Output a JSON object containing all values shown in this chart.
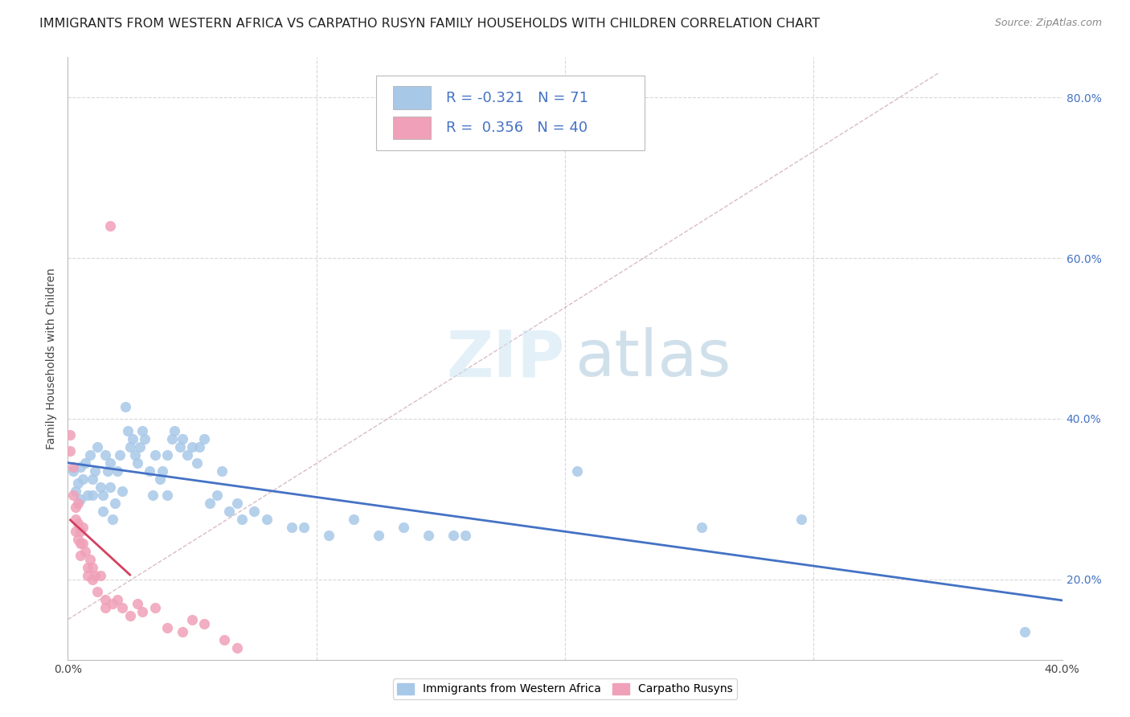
{
  "title": "IMMIGRANTS FROM WESTERN AFRICA VS CARPATHO RUSYN FAMILY HOUSEHOLDS WITH CHILDREN CORRELATION CHART",
  "source": "Source: ZipAtlas.com",
  "ylabel": "Family Households with Children",
  "xlim": [
    0.0,
    0.4
  ],
  "ylim": [
    0.1,
    0.85
  ],
  "blue_R": "-0.321",
  "blue_N": "71",
  "pink_R": "0.356",
  "pink_N": "40",
  "blue_color": "#a8c8e8",
  "pink_color": "#f0a0b8",
  "blue_line_color": "#4472c4",
  "pink_line_color": "#d44060",
  "blue_scatter": [
    [
      0.002,
      0.335
    ],
    [
      0.003,
      0.31
    ],
    [
      0.004,
      0.32
    ],
    [
      0.005,
      0.34
    ],
    [
      0.005,
      0.3
    ],
    [
      0.006,
      0.325
    ],
    [
      0.007,
      0.345
    ],
    [
      0.008,
      0.305
    ],
    [
      0.009,
      0.355
    ],
    [
      0.01,
      0.325
    ],
    [
      0.01,
      0.305
    ],
    [
      0.011,
      0.335
    ],
    [
      0.012,
      0.365
    ],
    [
      0.013,
      0.315
    ],
    [
      0.014,
      0.305
    ],
    [
      0.014,
      0.285
    ],
    [
      0.015,
      0.355
    ],
    [
      0.016,
      0.335
    ],
    [
      0.017,
      0.345
    ],
    [
      0.017,
      0.315
    ],
    [
      0.018,
      0.275
    ],
    [
      0.019,
      0.295
    ],
    [
      0.02,
      0.335
    ],
    [
      0.021,
      0.355
    ],
    [
      0.022,
      0.31
    ],
    [
      0.023,
      0.415
    ],
    [
      0.024,
      0.385
    ],
    [
      0.025,
      0.365
    ],
    [
      0.026,
      0.375
    ],
    [
      0.027,
      0.355
    ],
    [
      0.028,
      0.345
    ],
    [
      0.029,
      0.365
    ],
    [
      0.03,
      0.385
    ],
    [
      0.031,
      0.375
    ],
    [
      0.033,
      0.335
    ],
    [
      0.034,
      0.305
    ],
    [
      0.035,
      0.355
    ],
    [
      0.037,
      0.325
    ],
    [
      0.038,
      0.335
    ],
    [
      0.04,
      0.355
    ],
    [
      0.04,
      0.305
    ],
    [
      0.042,
      0.375
    ],
    [
      0.043,
      0.385
    ],
    [
      0.045,
      0.365
    ],
    [
      0.046,
      0.375
    ],
    [
      0.048,
      0.355
    ],
    [
      0.05,
      0.365
    ],
    [
      0.052,
      0.345
    ],
    [
      0.053,
      0.365
    ],
    [
      0.055,
      0.375
    ],
    [
      0.057,
      0.295
    ],
    [
      0.06,
      0.305
    ],
    [
      0.062,
      0.335
    ],
    [
      0.065,
      0.285
    ],
    [
      0.068,
      0.295
    ],
    [
      0.07,
      0.275
    ],
    [
      0.075,
      0.285
    ],
    [
      0.08,
      0.275
    ],
    [
      0.09,
      0.265
    ],
    [
      0.095,
      0.265
    ],
    [
      0.105,
      0.255
    ],
    [
      0.115,
      0.275
    ],
    [
      0.125,
      0.255
    ],
    [
      0.135,
      0.265
    ],
    [
      0.145,
      0.255
    ],
    [
      0.155,
      0.255
    ],
    [
      0.16,
      0.255
    ],
    [
      0.205,
      0.335
    ],
    [
      0.255,
      0.265
    ],
    [
      0.295,
      0.275
    ],
    [
      0.385,
      0.135
    ]
  ],
  "pink_scatter": [
    [
      0.001,
      0.38
    ],
    [
      0.001,
      0.36
    ],
    [
      0.002,
      0.34
    ],
    [
      0.002,
      0.305
    ],
    [
      0.003,
      0.29
    ],
    [
      0.003,
      0.26
    ],
    [
      0.003,
      0.275
    ],
    [
      0.004,
      0.295
    ],
    [
      0.004,
      0.27
    ],
    [
      0.004,
      0.25
    ],
    [
      0.005,
      0.26
    ],
    [
      0.005,
      0.245
    ],
    [
      0.005,
      0.23
    ],
    [
      0.006,
      0.265
    ],
    [
      0.006,
      0.245
    ],
    [
      0.007,
      0.235
    ],
    [
      0.008,
      0.215
    ],
    [
      0.008,
      0.205
    ],
    [
      0.009,
      0.225
    ],
    [
      0.01,
      0.215
    ],
    [
      0.01,
      0.2
    ],
    [
      0.011,
      0.205
    ],
    [
      0.012,
      0.185
    ],
    [
      0.013,
      0.205
    ],
    [
      0.015,
      0.175
    ],
    [
      0.015,
      0.165
    ],
    [
      0.017,
      0.64
    ],
    [
      0.02,
      0.175
    ],
    [
      0.022,
      0.165
    ],
    [
      0.025,
      0.155
    ],
    [
      0.028,
      0.17
    ],
    [
      0.03,
      0.16
    ],
    [
      0.035,
      0.165
    ],
    [
      0.04,
      0.14
    ],
    [
      0.046,
      0.135
    ],
    [
      0.05,
      0.15
    ],
    [
      0.055,
      0.145
    ],
    [
      0.063,
      0.125
    ],
    [
      0.068,
      0.115
    ],
    [
      0.018,
      0.17
    ]
  ],
  "background_color": "#ffffff",
  "grid_color": "#d8d8d8",
  "title_fontsize": 11.5,
  "axis_label_fontsize": 10,
  "tick_fontsize": 10,
  "right_ytick_color": "#4472c4"
}
